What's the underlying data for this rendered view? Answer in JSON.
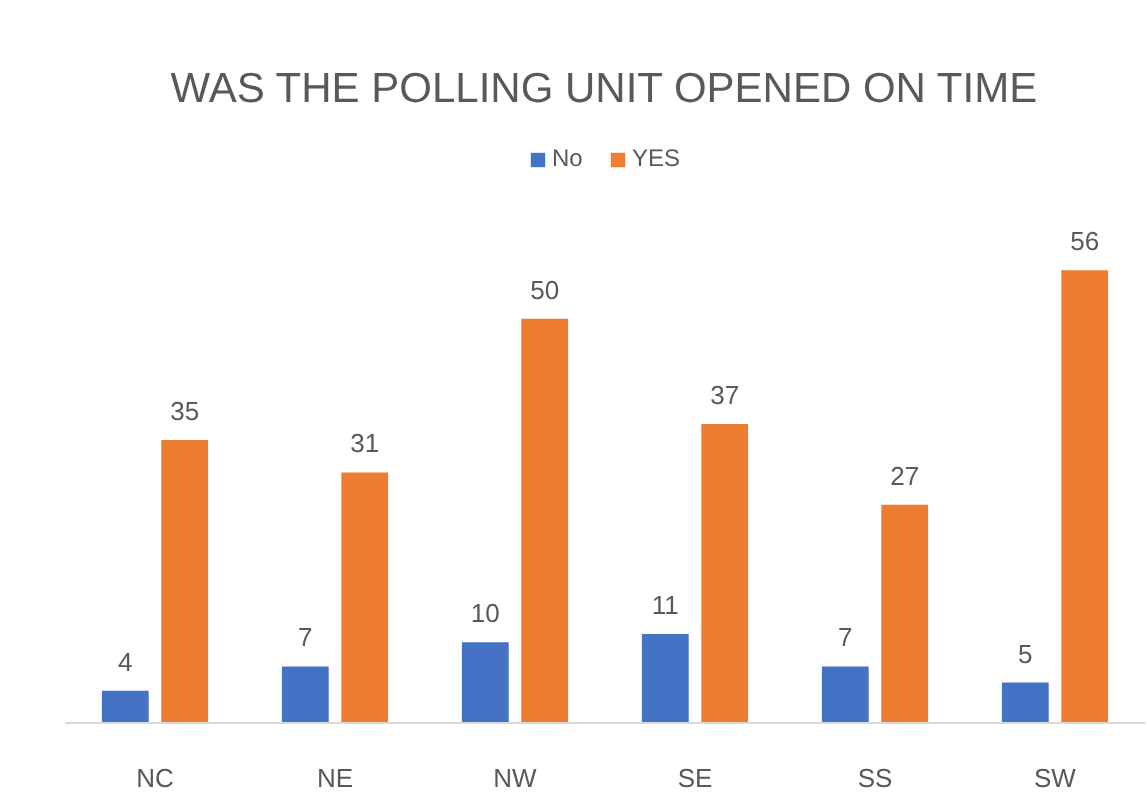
{
  "chart_data": {
    "type": "bar",
    "title": "WAS THE POLLING UNIT OPENED ON TIME",
    "categories": [
      "NC",
      "NE",
      "NW",
      "SE",
      "SS",
      "SW"
    ],
    "series": [
      {
        "name": "No",
        "color": "#4472c4",
        "values": [
          4,
          7,
          10,
          11,
          7,
          5
        ]
      },
      {
        "name": "YES",
        "color": "#ed7d31",
        "values": [
          35,
          31,
          50,
          37,
          27,
          56
        ]
      }
    ],
    "data_labels": true,
    "legend": "top",
    "grid": false
  }
}
